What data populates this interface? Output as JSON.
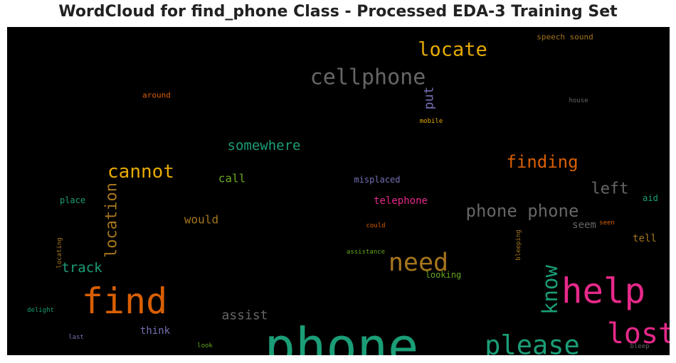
{
  "chart_data": {
    "type": "wordcloud",
    "title": "WordCloud for find_phone Class - Processed EDA-3 Training Set",
    "background": "#000000",
    "words": [
      {
        "text": "phone",
        "weight": 1.0,
        "color": "#1b9e77",
        "vertical": false
      },
      {
        "text": "find",
        "weight": 0.7,
        "color": "#d95f02",
        "vertical": false
      },
      {
        "text": "help",
        "weight": 0.68,
        "color": "#e7298a",
        "vertical": false
      },
      {
        "text": "lost",
        "weight": 0.55,
        "color": "#e7298a",
        "vertical": false
      },
      {
        "text": "please",
        "weight": 0.52,
        "color": "#1b9e77",
        "vertical": false
      },
      {
        "text": "need",
        "weight": 0.48,
        "color": "#a6761d",
        "vertical": false
      },
      {
        "text": "cellphone",
        "weight": 0.42,
        "color": "#666666",
        "vertical": false
      },
      {
        "text": "know",
        "weight": 0.4,
        "color": "#1b9e77",
        "vertical": true
      },
      {
        "text": "locate",
        "weight": 0.38,
        "color": "#e6ab02",
        "vertical": false
      },
      {
        "text": "cannot",
        "weight": 0.36,
        "color": "#e6ab02",
        "vertical": false
      },
      {
        "text": "phone phone",
        "weight": 0.34,
        "color": "#666666",
        "vertical": false
      },
      {
        "text": "finding",
        "weight": 0.34,
        "color": "#d95f02",
        "vertical": false
      },
      {
        "text": "location",
        "weight": 0.3,
        "color": "#a6761d",
        "vertical": true
      },
      {
        "text": "left",
        "weight": 0.3,
        "color": "#666666",
        "vertical": false
      },
      {
        "text": "somewhere",
        "weight": 0.26,
        "color": "#1b9e77",
        "vertical": false
      },
      {
        "text": "track",
        "weight": 0.26,
        "color": "#1b9e77",
        "vertical": false
      },
      {
        "text": "assist",
        "weight": 0.25,
        "color": "#666666",
        "vertical": false
      },
      {
        "text": "put",
        "weight": 0.25,
        "color": "#7570b3",
        "vertical": true
      },
      {
        "text": "would",
        "weight": 0.22,
        "color": "#a6761d",
        "vertical": false
      },
      {
        "text": "call",
        "weight": 0.22,
        "color": "#66a61e",
        "vertical": false
      },
      {
        "text": "think",
        "weight": 0.2,
        "color": "#7570b3",
        "vertical": false
      },
      {
        "text": "seem",
        "weight": 0.2,
        "color": "#666666",
        "vertical": false
      },
      {
        "text": "tell",
        "weight": 0.2,
        "color": "#a6761d",
        "vertical": false
      },
      {
        "text": "telephone",
        "weight": 0.19,
        "color": "#e7298a",
        "vertical": false
      },
      {
        "text": "misplaced",
        "weight": 0.17,
        "color": "#7570b3",
        "vertical": false
      },
      {
        "text": "looking",
        "weight": 0.17,
        "color": "#66a61e",
        "vertical": false
      },
      {
        "text": "place",
        "weight": 0.16,
        "color": "#1b9e77",
        "vertical": false
      },
      {
        "text": "aid",
        "weight": 0.16,
        "color": "#1b9e77",
        "vertical": false
      },
      {
        "text": "speech sound",
        "weight": 0.15,
        "color": "#a6761d",
        "vertical": false
      },
      {
        "text": "around",
        "weight": 0.15,
        "color": "#d95f02",
        "vertical": false
      },
      {
        "text": "house",
        "weight": 0.12,
        "color": "#666666",
        "vertical": false
      },
      {
        "text": "mobile",
        "weight": 0.12,
        "color": "#e6ab02",
        "vertical": false
      },
      {
        "text": "could",
        "weight": 0.12,
        "color": "#d95f02",
        "vertical": false
      },
      {
        "text": "seen",
        "weight": 0.12,
        "color": "#d95f02",
        "vertical": false
      },
      {
        "text": "assistance",
        "weight": 0.11,
        "color": "#66a61e",
        "vertical": false
      },
      {
        "text": "bleeping",
        "weight": 0.11,
        "color": "#a6761d",
        "vertical": true
      },
      {
        "text": "locating",
        "weight": 0.1,
        "color": "#a6761d",
        "vertical": true
      },
      {
        "text": "delight",
        "weight": 0.11,
        "color": "#1b9e77",
        "vertical": false
      },
      {
        "text": "last",
        "weight": 0.11,
        "color": "#7570b3",
        "vertical": false
      },
      {
        "text": "look",
        "weight": 0.11,
        "color": "#66a61e",
        "vertical": false
      },
      {
        "text": "bleep",
        "weight": 0.11,
        "color": "#666666",
        "vertical": false
      }
    ]
  }
}
